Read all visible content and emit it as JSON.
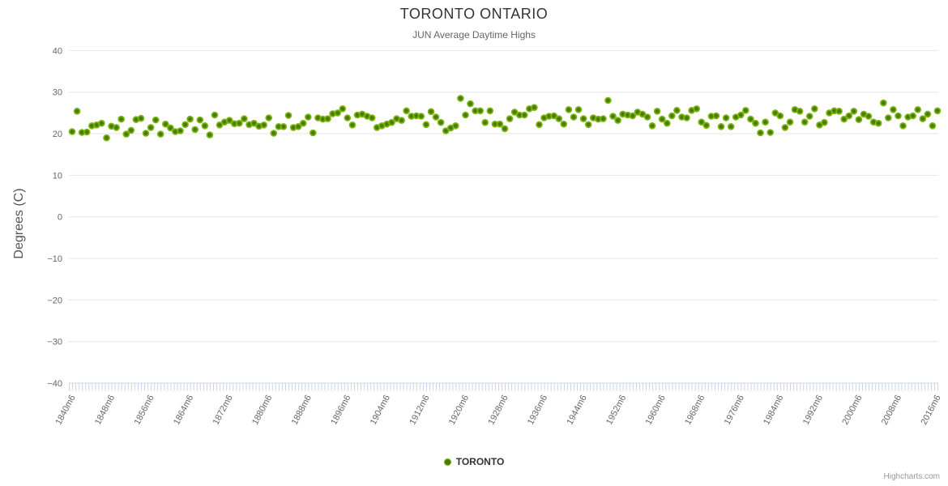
{
  "header": {
    "title": "TORONTO ONTARIO",
    "subtitle": "JUN Average Daytime Highs"
  },
  "y_axis": {
    "title": "Degrees (C)"
  },
  "legend": {
    "series_label": "TORONTO"
  },
  "credits": {
    "label": "Highcharts.com"
  },
  "colors": {
    "marker_center": "#467a02",
    "marker_edge": "#7cb512",
    "grid_line": "#e6e6e6",
    "axis_line": "#ccd6eb",
    "axis_label_text": "#666666",
    "title_text": "#333333",
    "subtitle_text": "#666666"
  },
  "chart_data": {
    "type": "scatter",
    "title": "TORONTO ONTARIO",
    "subtitle": "JUN Average Daytime Highs",
    "xlabel": "",
    "ylabel": "Degrees (C)",
    "ylim": [
      -40,
      40
    ],
    "y_ticks": [
      -40,
      -30,
      -20,
      -10,
      0,
      10,
      20,
      30,
      40
    ],
    "y_tick_labels": [
      "−40",
      "−30",
      "−20",
      "−10",
      "0",
      "10",
      "20",
      "30",
      "40"
    ],
    "x_range": {
      "start": 1840,
      "end": 2016,
      "step": 1
    },
    "x_label_interval_years": 8,
    "x_tick_labels": [
      "1840m6",
      "1848m6",
      "1856m6",
      "1864m6",
      "1872m6",
      "1880m6",
      "1888m6",
      "1896m6",
      "1904m6",
      "1912m6",
      "1920m6",
      "1928m6",
      "1936m6",
      "1944m6",
      "1952m6",
      "1960m6",
      "1968m6",
      "1976m6",
      "1984m6",
      "1992m6",
      "2000m6",
      "2008m6",
      "2016m6"
    ],
    "grid": true,
    "legend_position": "bottom-center",
    "series": [
      {
        "name": "TORONTO",
        "color": "#7cb512",
        "first_year": 1840,
        "values": [
          20.5,
          25.4,
          20.3,
          20.4,
          21.9,
          22.1,
          22.5,
          19.0,
          21.8,
          21.5,
          23.5,
          19.9,
          20.8,
          23.4,
          23.7,
          20.1,
          21.5,
          23.3,
          19.9,
          22.3,
          21.4,
          20.5,
          20.7,
          22.2,
          23.5,
          21.0,
          23.3,
          21.9,
          19.7,
          24.5,
          22.1,
          22.8,
          23.2,
          22.4,
          22.5,
          23.6,
          22.2,
          22.5,
          21.8,
          22.1,
          23.8,
          20.1,
          21.7,
          21.7,
          24.4,
          21.5,
          21.7,
          22.5,
          24.0,
          20.2,
          23.8,
          23.5,
          23.6,
          24.8,
          25.0,
          26.0,
          23.8,
          22.1,
          24.5,
          24.7,
          24.2,
          23.8,
          21.5,
          21.9,
          22.3,
          22.7,
          23.6,
          23.2,
          25.5,
          24.2,
          24.3,
          24.2,
          22.2,
          25.3,
          24.0,
          22.7,
          20.7,
          21.4,
          21.9,
          28.5,
          24.5,
          27.2,
          25.5,
          25.5,
          22.7,
          25.5,
          22.3,
          22.3,
          21.2,
          23.6,
          25.2,
          24.5,
          24.5,
          26.0,
          26.3,
          22.2,
          23.8,
          24.2,
          24.3,
          23.6,
          22.3,
          25.8,
          24.0,
          25.8,
          23.6,
          22.2,
          23.8,
          23.5,
          23.6,
          28.0,
          24.2,
          23.2,
          24.7,
          24.5,
          24.3,
          25.2,
          24.7,
          24.0,
          21.9,
          25.4,
          23.5,
          22.5,
          24.3,
          25.6,
          24.0,
          23.8,
          25.6,
          26.0,
          22.8,
          22.0,
          24.2,
          24.3,
          21.7,
          23.8,
          21.7,
          24.0,
          24.5,
          25.6,
          23.5,
          22.5,
          20.2,
          22.8,
          20.3,
          25.0,
          24.3,
          21.5,
          22.8,
          25.8,
          25.4,
          22.8,
          24.2,
          26.0,
          22.1,
          22.7,
          25.0,
          25.5,
          25.4,
          23.5,
          24.3,
          25.4,
          23.4,
          24.7,
          24.2,
          22.8,
          22.5,
          27.4,
          23.8,
          25.8,
          24.3,
          21.9,
          24.0,
          24.3,
          25.8,
          23.6,
          24.7,
          21.9,
          25.5
        ]
      }
    ]
  }
}
